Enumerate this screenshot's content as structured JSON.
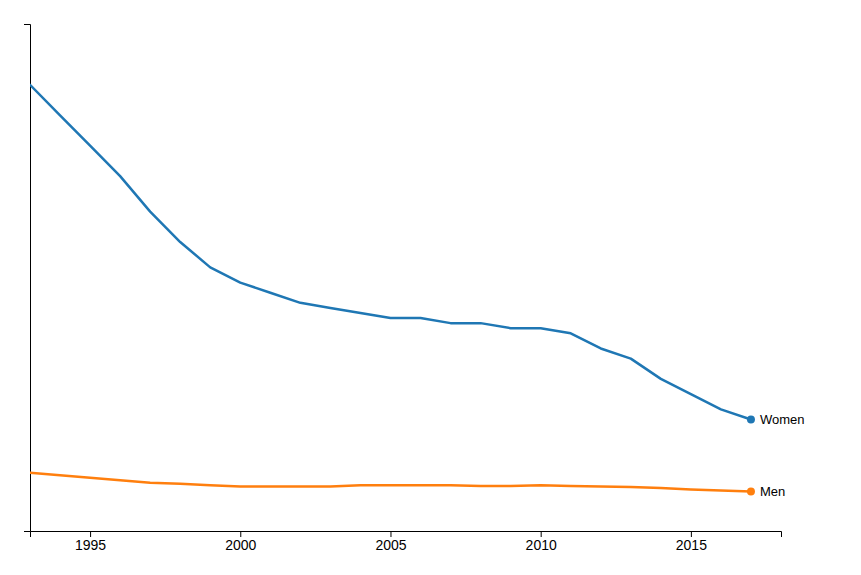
{
  "chart_data": {
    "type": "line",
    "x": [
      1993,
      1994,
      1995,
      1996,
      1997,
      1998,
      1999,
      2000,
      2001,
      2002,
      2003,
      2004,
      2005,
      2006,
      2007,
      2008,
      2009,
      2010,
      2011,
      2012,
      2013,
      2014,
      2015,
      2016,
      2017
    ],
    "series": [
      {
        "name": "Women",
        "values": [
          0.88,
          0.82,
          0.76,
          0.7,
          0.63,
          0.57,
          0.52,
          0.49,
          0.47,
          0.45,
          0.44,
          0.43,
          0.42,
          0.42,
          0.41,
          0.41,
          0.4,
          0.4,
          0.39,
          0.36,
          0.34,
          0.3,
          0.27,
          0.24,
          0.22
        ]
      },
      {
        "name": "Men",
        "values": [
          0.115,
          0.11,
          0.105,
          0.1,
          0.095,
          0.093,
          0.09,
          0.088,
          0.088,
          0.088,
          0.088,
          0.09,
          0.09,
          0.09,
          0.09,
          0.089,
          0.089,
          0.09,
          0.089,
          0.088,
          0.087,
          0.085,
          0.082,
          0.08,
          0.078
        ]
      }
    ],
    "xlim": [
      1993,
      2018
    ],
    "ylim": [
      0,
      1
    ],
    "xticks": [
      1995,
      2000,
      2005,
      2010,
      2015
    ],
    "tick_labels": "x"
  }
}
